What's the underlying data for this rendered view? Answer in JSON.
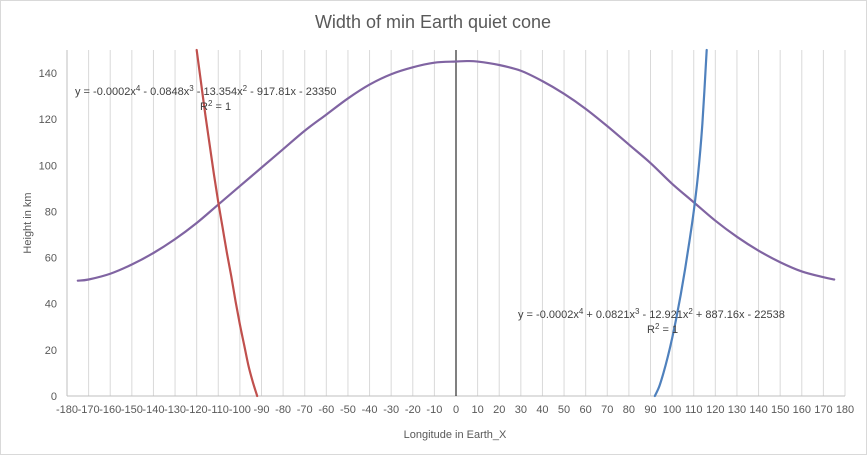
{
  "chart_data": {
    "type": "line",
    "title": "Width of min Earth quiet cone",
    "xlabel": "Longitude  in Earth_X",
    "ylabel": "Height in km",
    "xlim": [
      -180,
      180
    ],
    "ylim": [
      0,
      150
    ],
    "x_ticks": [
      "-180",
      "-170",
      "-160",
      "-150",
      "-140",
      "-130",
      "-120",
      "-110",
      "-100",
      "-90",
      "-80",
      "-70",
      "-60",
      "-50",
      "-40",
      "-30",
      "-20",
      "-10",
      "0",
      "10",
      "20",
      "30",
      "40",
      "50",
      "60",
      "70",
      "80",
      "90",
      "100",
      "110",
      "120",
      "130",
      "140",
      "150",
      "160",
      "170",
      "180"
    ],
    "y_ticks": [
      "0",
      "20",
      "40",
      "60",
      "80",
      "100",
      "120",
      "140"
    ],
    "grid": {
      "vertical": true,
      "horizontal": false
    },
    "zero_line_x": 0,
    "colors": {
      "purple": "#8064A2",
      "red": "#C0504D",
      "blue": "#4F81BD",
      "grid": "#D9D9D9",
      "axis": "#BFBFBF",
      "zero_line": "#000000"
    },
    "series": [
      {
        "color": "#8064A2",
        "x": [
          -175,
          -170,
          -160,
          -150,
          -140,
          -130,
          -120,
          -110,
          -100,
          -90,
          -80,
          -70,
          -60,
          -50,
          -40,
          -30,
          -20,
          -10,
          0,
          5,
          10,
          20,
          30,
          40,
          50,
          60,
          70,
          80,
          90,
          100,
          110,
          120,
          130,
          140,
          150,
          160,
          170,
          175
        ],
        "y": [
          50,
          50.5,
          53,
          57,
          62,
          68,
          75,
          83,
          91,
          99,
          107,
          115,
          122,
          129,
          135,
          139.5,
          142.5,
          144.5,
          145,
          145.2,
          145,
          143.5,
          141,
          136.5,
          131,
          124.5,
          117,
          109,
          101,
          92,
          84,
          76,
          69,
          63,
          58,
          54,
          51.5,
          50.5
        ]
      },
      {
        "color": "#C0504D",
        "x": [
          -120,
          -118,
          -116,
          -114,
          -112,
          -110,
          -108,
          -106,
          -104,
          -102,
          -100,
          -98,
          -96,
          -94,
          -92
        ],
        "y": [
          150,
          136,
          122,
          109,
          96,
          84,
          73,
          62,
          52,
          41,
          31,
          22,
          13,
          6,
          0
        ]
      },
      {
        "color": "#4F81BD",
        "x": [
          92,
          94,
          96,
          98,
          100,
          102,
          104,
          106,
          108,
          110,
          112,
          114,
          116
        ],
        "y": [
          0,
          4,
          10,
          17,
          25,
          34,
          44,
          55,
          67,
          80,
          96,
          118,
          150
        ]
      }
    ],
    "annotations": [
      {
        "parts": [
          "y = -0.0002x",
          "4",
          " - 0.0848x",
          "3",
          " - 13.354x",
          "2",
          " - 917.81x - 23350"
        ],
        "r2": [
          "R",
          "2",
          " = 1"
        ]
      },
      {
        "parts": [
          "y = -0.0002x",
          "4",
          " + 0.0821x",
          "3",
          " - 12.921x",
          "2",
          " + 887.16x - 22538"
        ],
        "r2": [
          "R",
          "2",
          " = 1"
        ]
      }
    ]
  }
}
